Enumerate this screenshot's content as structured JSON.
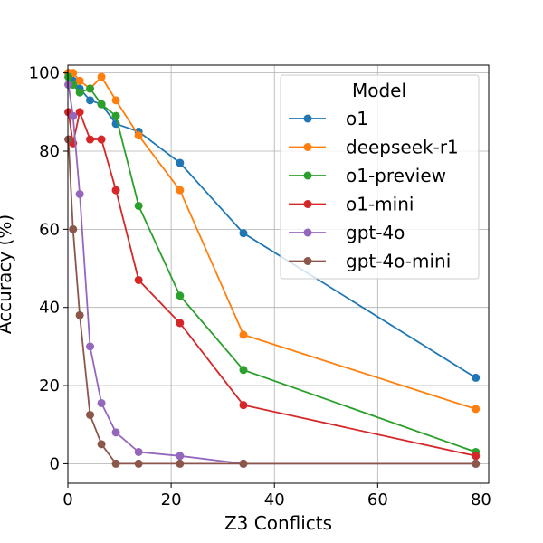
{
  "chart_data": {
    "type": "line",
    "title": "",
    "xlabel": "Z3 Conflicts",
    "ylabel": "Accuracy (%)",
    "xlim": [
      0,
      81.5
    ],
    "ylim": [
      -5,
      102
    ],
    "xticks": [
      0,
      20,
      40,
      60,
      80
    ],
    "yticks": [
      0,
      20,
      40,
      60,
      80,
      100
    ],
    "xtick_labels": [
      "0",
      "20",
      "40",
      "60",
      "80"
    ],
    "ytick_labels": [
      "0",
      "20",
      "40",
      "60",
      "80",
      "100"
    ],
    "grid": true,
    "legend": {
      "title": "Model",
      "position": "top-right"
    },
    "series": [
      {
        "name": "o1",
        "color": "#1f77b4",
        "x": [
          0.1,
          1.0,
          2.3,
          4.3,
          6.5,
          9.3,
          13.7,
          21.7,
          34.0,
          79.0
        ],
        "y": [
          100,
          98,
          96,
          93,
          92,
          87,
          85,
          77,
          59,
          22
        ]
      },
      {
        "name": "deepseek-r1",
        "color": "#ff7f0e",
        "x": [
          0.1,
          1.0,
          2.3,
          4.3,
          6.5,
          9.3,
          13.7,
          21.7,
          34.0,
          79.0
        ],
        "y": [
          100,
          100,
          98,
          96,
          99,
          93,
          84,
          70,
          33,
          14
        ]
      },
      {
        "name": "o1-preview",
        "color": "#2ca02c",
        "x": [
          0.1,
          1.0,
          2.3,
          4.3,
          6.5,
          9.3,
          13.7,
          21.7,
          34.0,
          79.0
        ],
        "y": [
          99,
          97,
          95,
          96,
          92,
          89,
          66,
          43,
          24,
          3
        ]
      },
      {
        "name": "o1-mini",
        "color": "#d62728",
        "x": [
          0.1,
          1.0,
          2.3,
          4.3,
          6.5,
          9.3,
          13.7,
          21.7,
          34.0,
          79.0
        ],
        "y": [
          90,
          82,
          90,
          83,
          83,
          70,
          47,
          36,
          15,
          2
        ]
      },
      {
        "name": "gpt-4o",
        "color": "#9467bd",
        "x": [
          0.1,
          1.0,
          2.3,
          4.3,
          6.5,
          9.3,
          13.7,
          21.7,
          34.0,
          79.0
        ],
        "y": [
          97,
          89,
          69,
          30,
          15.5,
          8,
          3,
          2,
          0,
          0
        ]
      },
      {
        "name": "gpt-4o-mini",
        "color": "#8c564b",
        "x": [
          0.1,
          1.0,
          2.3,
          4.3,
          6.5,
          9.3,
          13.7,
          21.7,
          34.0,
          79.0
        ],
        "y": [
          83,
          60,
          38,
          12.5,
          5,
          0,
          0,
          0,
          0,
          0
        ]
      }
    ]
  }
}
